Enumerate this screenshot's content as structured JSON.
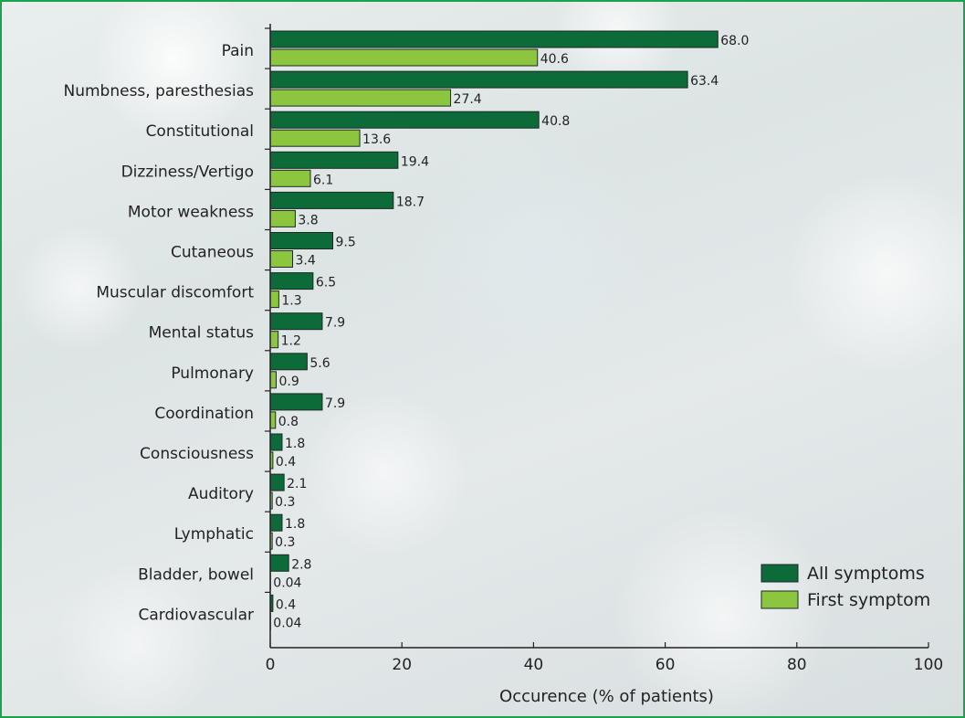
{
  "chart_data": {
    "type": "bar",
    "orientation": "horizontal",
    "categories": [
      "Pain",
      "Numbness, paresthesias",
      "Constitutional",
      "Dizziness/Vertigo",
      "Motor weakness",
      "Cutaneous",
      "Muscular discomfort",
      "Mental status",
      "Pulmonary",
      "Coordination",
      "Consciousness",
      "Auditory",
      "Lymphatic",
      "Bladder, bowel",
      "Cardiovascular"
    ],
    "series": [
      {
        "name": "All symptoms",
        "color": "#0d6b3a",
        "values": [
          68.0,
          63.4,
          40.8,
          19.4,
          18.7,
          9.5,
          6.5,
          7.9,
          5.6,
          7.9,
          1.8,
          2.1,
          1.8,
          2.8,
          0.4
        ],
        "labels": [
          "68.0",
          "63.4",
          "40.8",
          "19.4",
          "18.7",
          "9.5",
          "6.5",
          "7.9",
          "5.6",
          "7.9",
          "1.8",
          "2.1",
          "1.8",
          "2.8",
          "0.4"
        ]
      },
      {
        "name": "First symptom",
        "color": "#8cc63f",
        "values": [
          40.6,
          27.4,
          13.6,
          6.1,
          3.8,
          3.4,
          1.3,
          1.2,
          0.9,
          0.8,
          0.4,
          0.3,
          0.3,
          0.04,
          0.04
        ],
        "labels": [
          "40.6",
          "27.4",
          "13.6",
          "6.1",
          "3.8",
          "3.4",
          "1.3",
          "1.2",
          "0.9",
          "0.8",
          "0.4",
          "0.3",
          "0.3",
          "0.04",
          "0.04"
        ]
      }
    ],
    "xlabel": "Occurence (% of patients)",
    "xlim": [
      0,
      100
    ],
    "xticks": [
      "0",
      "20",
      "40",
      "60",
      "80",
      "100"
    ],
    "grid": false,
    "legend": "bottom-right"
  }
}
